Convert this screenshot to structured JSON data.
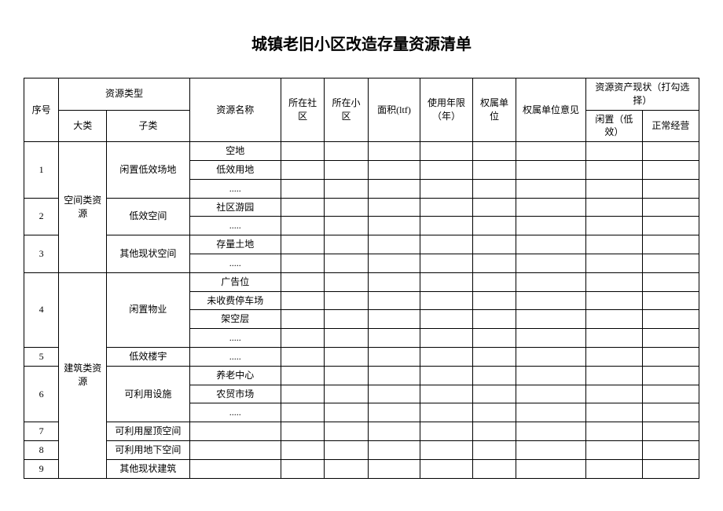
{
  "title": "城镇老旧小区改造存量资源清单",
  "headers": {
    "seq": "序号",
    "resource_type": "资源类型",
    "cat1": "大类",
    "cat2": "子类",
    "name": "资源名称",
    "community": "所在社区",
    "district": "所在小区",
    "area": "面积(ltf)",
    "years": "使用年限（年）",
    "owner": "权属单位",
    "opinion": "权属单位意见",
    "status_group": "资源资产现状（打勾选择）",
    "status_idle": "闲置（低效）",
    "status_normal": "正常经营"
  },
  "categories": {
    "spatial": "空间类资源",
    "building": "建筑类资源"
  },
  "rows": {
    "r1": {
      "seq": "1",
      "cat2": "闲置低效场地"
    },
    "r1_names": [
      "空地",
      "低效用地",
      "....."
    ],
    "r2": {
      "seq": "2",
      "cat2": "低效空间"
    },
    "r2_names": [
      "社区游园",
      "....."
    ],
    "r3": {
      "seq": "3",
      "cat2": "其他现状空间"
    },
    "r3_names": [
      "存量土地",
      "....."
    ],
    "r4": {
      "seq": "4",
      "cat2": "闲置物业"
    },
    "r4_names": [
      "广告位",
      "未收费停车场",
      "架空层",
      "....."
    ],
    "r5": {
      "seq": "5",
      "cat2": "低效楼宇"
    },
    "r5_names": [
      "....."
    ],
    "r6": {
      "seq": "6",
      "cat2": "可利用设施"
    },
    "r6_names": [
      "养老中心",
      "农贸市场",
      "....."
    ],
    "r7": {
      "seq": "7",
      "cat2": "可利用屋顶空间"
    },
    "r8": {
      "seq": "8",
      "cat2": "可利用地下空间"
    },
    "r9": {
      "seq": "9",
      "cat2": "其他现状建筑"
    }
  },
  "styling": {
    "background_color": "#ffffff",
    "border_color": "#000000",
    "text_color": "#000000",
    "title_fontsize": 20,
    "cell_fontsize": 12,
    "font_family": "SimSun"
  }
}
